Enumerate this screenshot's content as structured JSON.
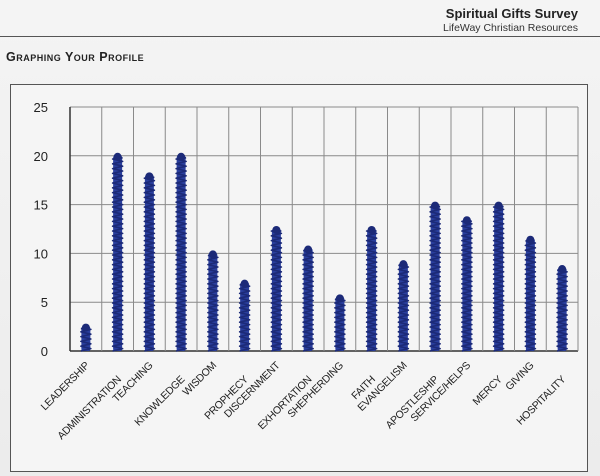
{
  "header": {
    "title": "Spiritual Gifts Survey",
    "subtitle": "LifeWay Christian Resources"
  },
  "section_title": "Graphing Your Profile",
  "colors": {
    "bar": "#2a3f9e",
    "bar_dark": "#1c2a78",
    "grid": "#8a8a8a",
    "axis": "#333333"
  },
  "chart_data": {
    "type": "bar",
    "title": "",
    "xlabel": "",
    "ylabel": "",
    "ylim": [
      0,
      25
    ],
    "yticks": [
      0,
      5,
      10,
      15,
      20,
      25
    ],
    "grid": true,
    "categories": [
      "LEADERSHIP",
      "ADMINISTRATION",
      "TEACHING",
      "KNOWLEDGE",
      "WISDOM",
      "PROPHECY",
      "DISCERNMENT",
      "EXHORTATION",
      "SHEPHERDING",
      "FAITH",
      "EVANGELISM",
      "APOSTLESHIP",
      "SERVICE/HELPS",
      "MERCY",
      "GIVING",
      "HOSPITALITY"
    ],
    "values": [
      2.5,
      20,
      18,
      20,
      10,
      7,
      12.5,
      10.5,
      5.5,
      12.5,
      9,
      15,
      13.5,
      15,
      11.5,
      8.5
    ]
  }
}
